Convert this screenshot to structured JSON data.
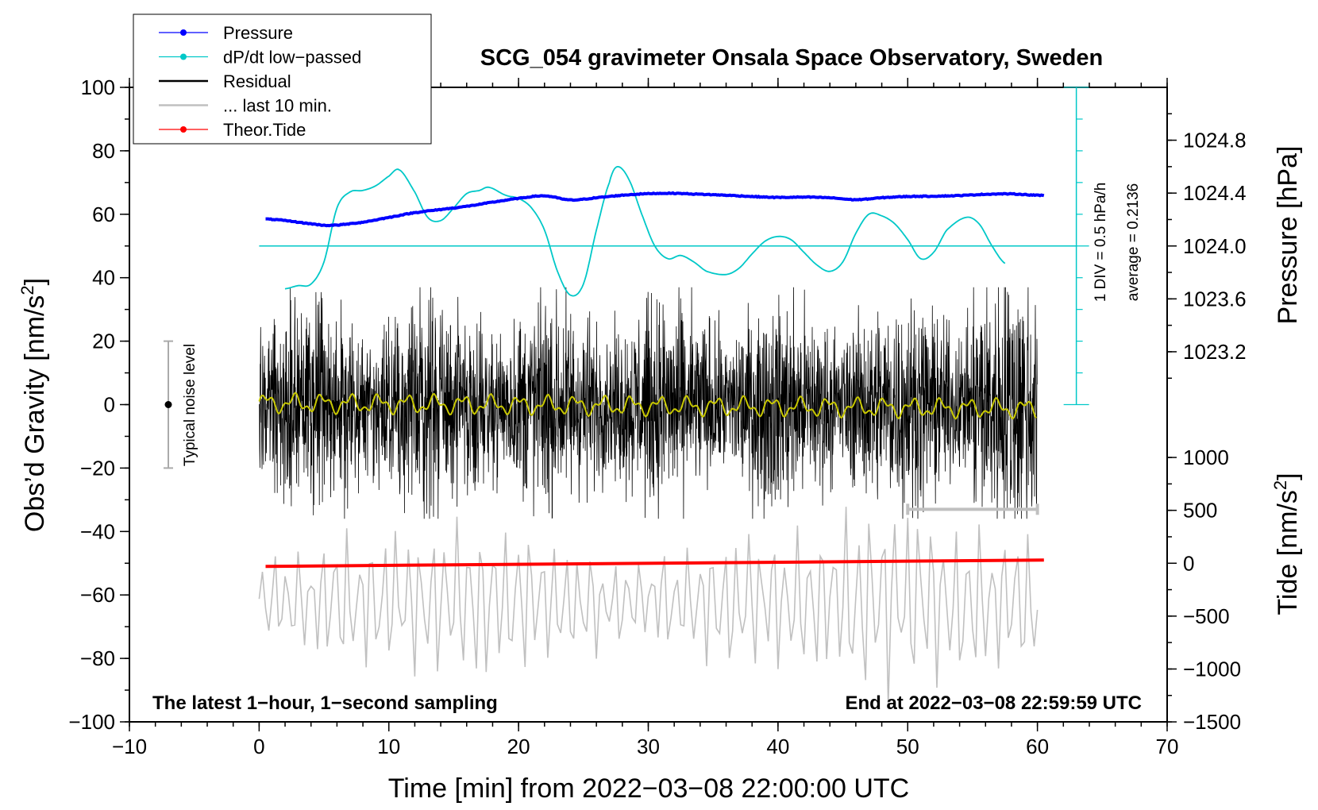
{
  "chart_data": {
    "type": "line",
    "title": "SCG_054 gravimeter Onsala Space Observatory, Sweden",
    "xlabel": "Time [min] from 2022−03−08 22:00:00 UTC",
    "ylabel_main": "Obs’d Gravity [nm/s",
    "ylabel_sup": "2",
    "ylabel_close": "]",
    "y2label": "Pressure [hPa]",
    "y3label_main": "Tide [nm/s",
    "y3label_sup": "2",
    "y3label_close": "]",
    "xlim": [
      -10,
      70
    ],
    "ylim": [
      -100,
      100
    ],
    "xticks": [
      -10,
      0,
      10,
      20,
      30,
      40,
      50,
      60,
      70
    ],
    "xtick_labels": [
      "−10",
      "0",
      "10",
      "20",
      "30",
      "40",
      "50",
      "60",
      "70"
    ],
    "yticks": [
      -100,
      -80,
      -60,
      -40,
      -20,
      0,
      20,
      40,
      60,
      80,
      100
    ],
    "ytick_labels": [
      "−100",
      "−80",
      "−60",
      "−40",
      "−20",
      "0",
      "20",
      "40",
      "60",
      "80",
      "100"
    ],
    "pressure_axis": {
      "ticks": [
        1023.2,
        1023.6,
        1024.0,
        1024.4,
        1024.8
      ],
      "tick_labels": [
        "1023.2",
        "1023.6",
        "1024.0",
        "1024.4",
        "1024.8"
      ],
      "gravity_equivalent_at_1024_0": 50,
      "gravity_per_0_4_hPa": 16.67
    },
    "tide_axis": {
      "ticks": [
        -1500,
        -1000,
        -500,
        0,
        500,
        1000
      ],
      "tick_labels": [
        "−1500",
        "−1000",
        "−500",
        "0",
        "500",
        "1000"
      ],
      "gravity_at_0": -50,
      "gravity_per_500": 16.67
    },
    "legend": [
      {
        "label": "Pressure",
        "color": "#0000ff",
        "marker": true
      },
      {
        "label": "dP/dt low−passed",
        "color": "#00c8c8",
        "marker": true
      },
      {
        "label": "Residual",
        "color": "#000000",
        "marker": false
      },
      {
        "label": "... last 10 min.",
        "color": "#c0c0c0",
        "marker": false
      },
      {
        "label": "Theor.Tide",
        "color": "#ff0000",
        "marker": true
      }
    ],
    "annotations": {
      "bottom_left": "The latest 1−hour, 1−second sampling",
      "bottom_right": "End at 2022−03−08 22:59:59 UTC",
      "noise_label": "Typical noise level",
      "div_label": "1 DIV = 0.5 hPa/h",
      "average_label": "average = 0.2136"
    },
    "noise_bar": {
      "x": -7,
      "y_center": 0,
      "y_min": -20,
      "y_max": 20
    },
    "last10_bar": {
      "x_start": 50,
      "x_end": 60,
      "y": -33
    },
    "dpdt_scale": {
      "x": 63,
      "y_min": 0,
      "y_max": 100,
      "divisions": 10,
      "average_level": 50
    },
    "series": [
      {
        "name": "Pressure",
        "color": "#0000ff",
        "x": [
          0.5,
          2,
          4,
          5.5,
          8,
          10,
          12,
          14,
          16,
          18,
          20,
          22,
          24,
          26,
          28,
          30,
          32,
          34,
          36,
          38,
          40,
          42,
          44,
          46,
          48,
          50,
          52,
          54,
          56,
          58,
          60.5
        ],
        "values": [
          58.5,
          58,
          57,
          56.5,
          57.5,
          59,
          60.5,
          61.5,
          62.5,
          63.8,
          65,
          65.8,
          64.5,
          65.2,
          66,
          66.5,
          66.6,
          66.3,
          66,
          65.6,
          65.3,
          65.4,
          65.2,
          64.6,
          65.2,
          65.6,
          65.7,
          65.9,
          66.3,
          66.4,
          65.9
        ]
      },
      {
        "name": "dP/dt low-passed",
        "color": "#00c8c8",
        "x": [
          2,
          3,
          4,
          5,
          6,
          7,
          8,
          9,
          10,
          10.8,
          12,
          13,
          14,
          15,
          16,
          17,
          17.7,
          19,
          20,
          21,
          22,
          23,
          24,
          25,
          26,
          27,
          27.6,
          28.5,
          29.5,
          30.5,
          31.5,
          32.5,
          33.5,
          34.5,
          36,
          37,
          38,
          39,
          40,
          41,
          42,
          43,
          44,
          45,
          46,
          47,
          48,
          49,
          50,
          51,
          52,
          53,
          54.5,
          55.5,
          56.5,
          57.5
        ],
        "values": [
          36.5,
          37.5,
          38,
          45,
          62,
          67,
          67.5,
          69,
          72,
          74,
          67,
          59,
          58,
          62,
          66.5,
          67.5,
          68.5,
          66,
          65,
          62,
          55,
          42,
          34.5,
          38,
          55,
          70,
          75,
          71,
          60,
          50,
          46,
          47,
          45,
          42,
          41,
          43,
          47.5,
          51.5,
          53,
          52,
          48,
          44,
          42,
          45,
          54,
          60,
          59.5,
          57,
          52,
          46,
          48,
          55,
          59,
          57,
          50,
          44.5
        ]
      },
      {
        "name": "Residual",
        "color": "#000000",
        "x_range": [
          0,
          60
        ],
        "amplitude": 30,
        "trend_color": "#c8c800"
      },
      {
        "name": "... last 10 min.",
        "color": "#c0c0c0",
        "x_range": [
          0,
          60
        ],
        "center": -62,
        "amplitude": 25
      },
      {
        "name": "Theor.Tide",
        "color": "#ff0000",
        "x": [
          0.5,
          60.5
        ],
        "values": [
          -51,
          -49
        ]
      }
    ]
  }
}
